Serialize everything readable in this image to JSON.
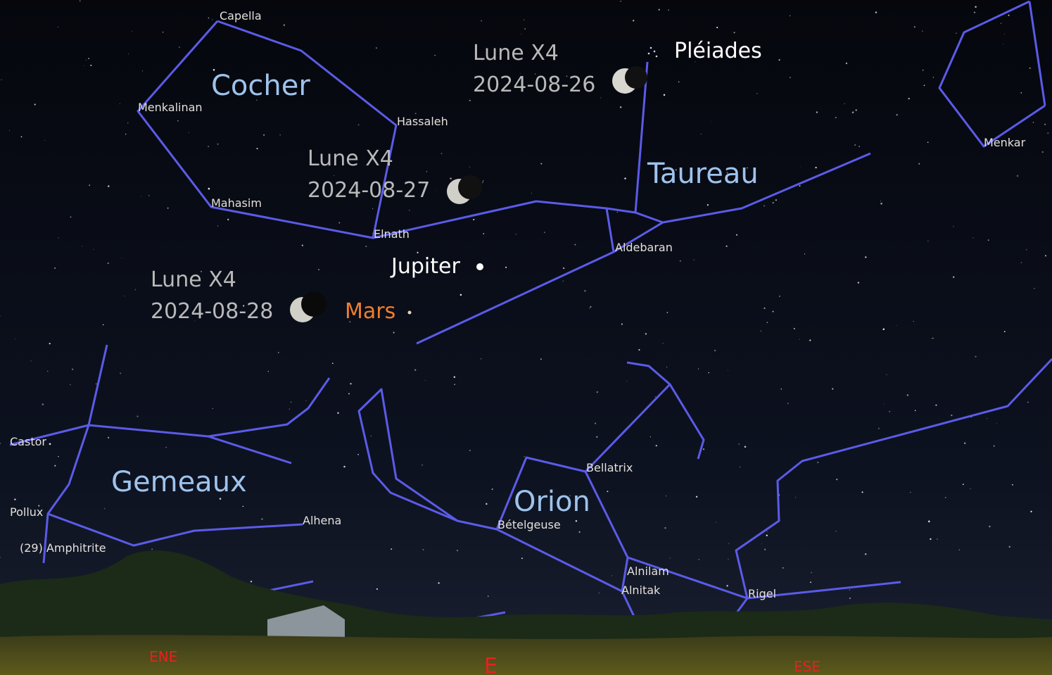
{
  "constellations": [
    "Cocher",
    "Taureau",
    "Gemeaux",
    "Orion"
  ],
  "stars": [
    "Capella",
    "Menkalinan",
    "Hassaleh",
    "Mahasim",
    "Elnath",
    "Aldebaran",
    "Menkar",
    "Castor",
    "Pollux",
    "Alhena",
    "Bellatrix",
    "Bételgeuse",
    "Alnilam",
    "Alnitak",
    "Rigel"
  ],
  "asteroid": "(29) Amphitrite",
  "deep_sky": "Pléiades",
  "planets": [
    "Jupiter",
    "Mars"
  ],
  "moon_positions": [
    {
      "label": "Lune X4",
      "date": "2024-08-26"
    },
    {
      "label": "Lune X4",
      "date": "2024-08-27"
    },
    {
      "label": "Lune X4",
      "date": "2024-08-28"
    }
  ],
  "cardinal_points": [
    "ENE",
    "E",
    "ESE"
  ]
}
